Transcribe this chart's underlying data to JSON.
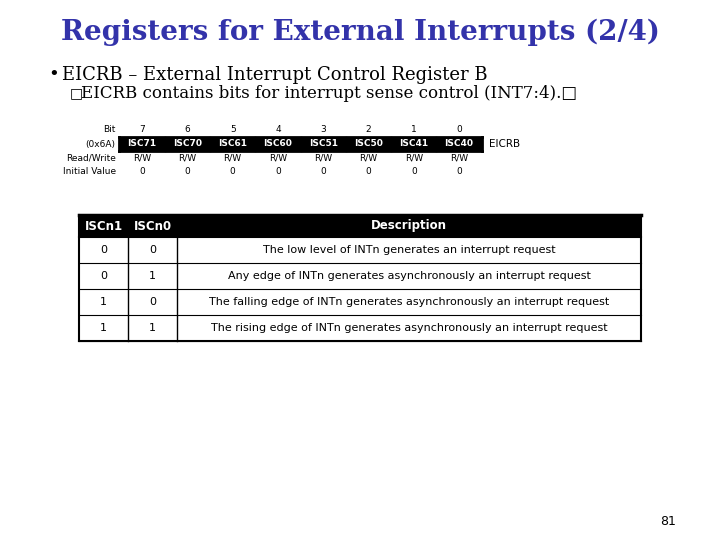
{
  "title": "Registers for External Interrupts (2/4)",
  "title_color": "#3333aa",
  "title_fontsize": 20,
  "bullet_text": "EICRB – External Interrupt Control Register B",
  "sub_bullet_text": "EICRB contains bits for interrupt sense control (INT7:4).□",
  "bullet_fontsize": 13,
  "sub_bullet_fontsize": 12,
  "bg_color": "#ffffff",
  "reg_bits": [
    "7",
    "6",
    "5",
    "4",
    "3",
    "2",
    "1",
    "0"
  ],
  "reg_names": [
    "ISC71",
    "ISC70",
    "ISC61",
    "ISC60",
    "ISC51",
    "ISC50",
    "ISC41",
    "ISC40"
  ],
  "reg_label": "EICRB",
  "reg_addr": "(0x6A)",
  "table_header": [
    "ISCn1",
    "ISCn0",
    "Description"
  ],
  "table_rows": [
    [
      "0",
      "0",
      "The low level of INTn generates an interrupt request"
    ],
    [
      "0",
      "1",
      "Any edge of INTn generates asynchronously an interrupt request"
    ],
    [
      "1",
      "0",
      "The falling edge of INTn generates asynchronously an interrupt request"
    ],
    [
      "1",
      "1",
      "The rising edge of INTn generates asynchronously an interrupt request"
    ]
  ],
  "page_number": "81",
  "header_bg": "#000000",
  "header_fg": "#ffffff",
  "reg_cell_bg": "#000000",
  "reg_cell_fg": "#ffffff"
}
